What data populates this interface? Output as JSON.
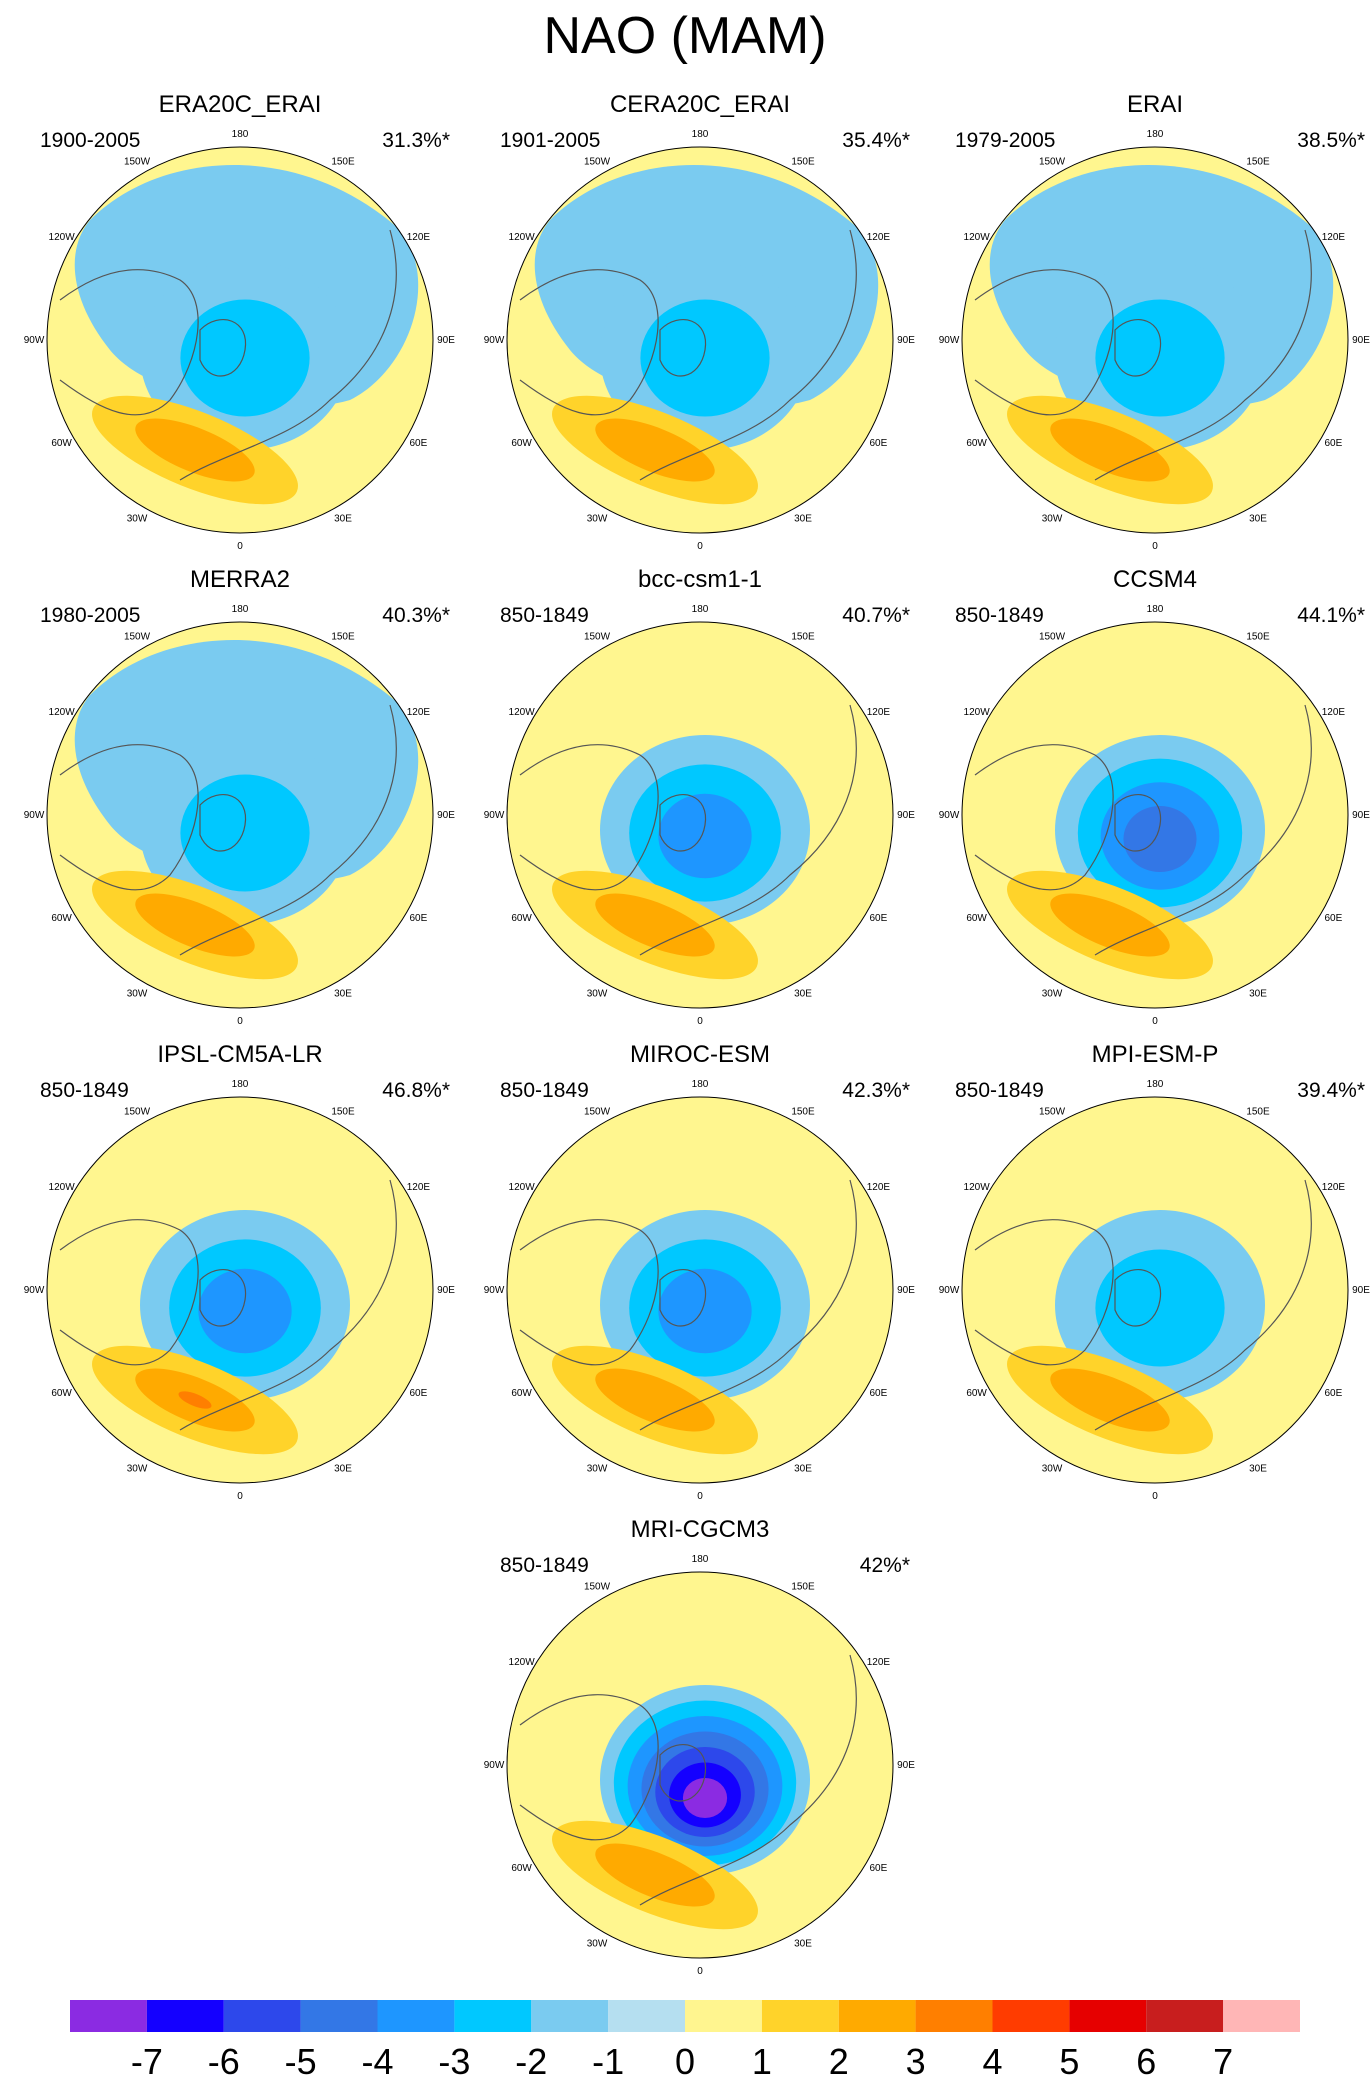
{
  "title": "NAO (MAM)",
  "colors": {
    "land": "#FFF68F",
    "ocean_fill": "#B2DFEE"
  },
  "lon_labels": [
    "180",
    "150E",
    "120E",
    "90E",
    "60E",
    "30E",
    "0",
    "30W",
    "60W",
    "90W",
    "120W",
    "150W"
  ],
  "panels": [
    {
      "name": "ERA20C_ERAI",
      "period": "1900-2005",
      "variance": "31.3%*",
      "center_min": -2,
      "atlantic_max": 2
    },
    {
      "name": "CERA20C_ERAI",
      "period": "1901-2005",
      "variance": "35.4%*",
      "center_min": -2,
      "atlantic_max": 2
    },
    {
      "name": "ERAI",
      "period": "1979-2005",
      "variance": "38.5%*",
      "center_min": -2,
      "atlantic_max": 2
    },
    {
      "name": "MERRA2",
      "period": "1980-2005",
      "variance": "40.3%*",
      "center_min": -2,
      "atlantic_max": 2
    },
    {
      "name": "bcc-csm1-1",
      "period": "850-1849",
      "variance": "40.7%*",
      "center_min": -3,
      "atlantic_max": 2
    },
    {
      "name": "CCSM4",
      "period": "850-1849",
      "variance": "44.1%*",
      "center_min": -4,
      "atlantic_max": 2
    },
    {
      "name": "IPSL-CM5A-LR",
      "period": "850-1849",
      "variance": "46.8%*",
      "center_min": -3,
      "atlantic_max": 3
    },
    {
      "name": "MIROC-ESM",
      "period": "850-1849",
      "variance": "42.3%*",
      "center_min": -3,
      "atlantic_max": 2
    },
    {
      "name": "MPI-ESM-P",
      "period": "850-1849",
      "variance": "39.4%*",
      "center_min": -2,
      "atlantic_max": 2
    },
    {
      "name": "MRI-CGCM3",
      "period": "850-1849",
      "variance": "42%*",
      "center_min": -7,
      "atlantic_max": 2
    }
  ],
  "colorbar": {
    "labels": [
      "-7",
      "-6",
      "-5",
      "-4",
      "-3",
      "-2",
      "-1",
      "0",
      "1",
      "2",
      "3",
      "4",
      "5",
      "6",
      "7"
    ],
    "colors": [
      "#8B2BE2",
      "#1400FF",
      "#2D48EB",
      "#3377E6",
      "#1E96FF",
      "#00C8FF",
      "#7ACBF0",
      "#B5DFF0",
      "#FFF58F",
      "#FFD32A",
      "#FFAA00",
      "#FF7F00",
      "#FF3C00",
      "#E60000",
      "#C81E1E",
      "#FFB6B6"
    ]
  }
}
